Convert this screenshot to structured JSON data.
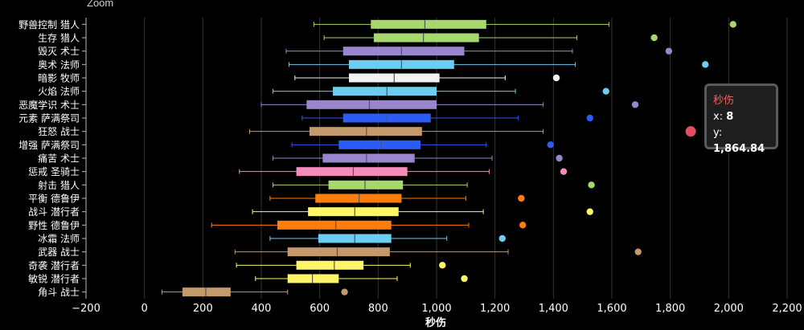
{
  "toolbar": {
    "zoom_label": "Zoom"
  },
  "colors": {
    "background": "#000000",
    "axis": "#bbbbbb",
    "grid": "#333333",
    "median": "#555555",
    "outlier_highlight": "#e05060"
  },
  "chart_data": {
    "type": "boxplot",
    "orientation": "horizontal",
    "xlabel": "秒伤",
    "xlim": [
      -200,
      2200
    ],
    "x_ticks": [
      -200,
      0,
      200,
      400,
      600,
      800,
      1000,
      1200,
      1400,
      1600,
      1800,
      2000,
      2200
    ],
    "x_tick_labels": [
      "−200",
      "0",
      "200",
      "400",
      "600",
      "800",
      "1,000",
      "1,200",
      "1,400",
      "1,600",
      "1,800",
      "2,000",
      "2,200"
    ],
    "grid": true,
    "categories": [
      "野兽控制 猎人",
      "生存 猎人",
      "毁灭 术士",
      "奥术 法师",
      "暗影 牧师",
      "火焰 法师",
      "恶魔学识 术士",
      "元素 萨满祭司",
      "狂怒 战士",
      "增强 萨满祭司",
      "痛苦 术士",
      "惩戒 圣骑士",
      "射击 猎人",
      "平衡 德鲁伊",
      "战斗 潜行者",
      "野性 德鲁伊",
      "冰霜 法师",
      "武器 战士",
      "奇袭 潜行者",
      "敏锐 潜行者",
      "角斗 战士"
    ],
    "colors": [
      "#a6d86e",
      "#a6d86e",
      "#9a86cc",
      "#6ccdf0",
      "#f2f2f2",
      "#6ccdf0",
      "#9a86cc",
      "#2b5cf5",
      "#c49a6c",
      "#2b5cf5",
      "#9a86cc",
      "#f48cba",
      "#a6d86e",
      "#ff7d0a",
      "#fff569",
      "#ff7d0a",
      "#6ccdf0",
      "#c49a6c",
      "#fff569",
      "#fff569",
      "#c49a6c"
    ],
    "boxes": [
      {
        "min": 580,
        "q1": 775,
        "median": 960,
        "q3": 1170,
        "max": 1590
      },
      {
        "min": 615,
        "q1": 785,
        "median": 955,
        "q3": 1145,
        "max": 1480
      },
      {
        "min": 485,
        "q1": 680,
        "median": 880,
        "q3": 1095,
        "max": 1465
      },
      {
        "min": 495,
        "q1": 700,
        "median": 880,
        "q3": 1060,
        "max": 1475
      },
      {
        "min": 515,
        "q1": 700,
        "median": 855,
        "q3": 1010,
        "max": 1235
      },
      {
        "min": 440,
        "q1": 645,
        "median": 830,
        "q3": 1000,
        "max": 1270
      },
      {
        "min": 400,
        "q1": 555,
        "median": 770,
        "q3": 1000,
        "max": 1365
      },
      {
        "min": 540,
        "q1": 680,
        "median": 830,
        "q3": 980,
        "max": 1280
      },
      {
        "min": 360,
        "q1": 565,
        "median": 760,
        "q3": 950,
        "max": 1365
      },
      {
        "min": 505,
        "q1": 665,
        "median": 810,
        "q3": 945,
        "max": 1170
      },
      {
        "min": 440,
        "q1": 610,
        "median": 760,
        "q3": 925,
        "max": 1190
      },
      {
        "min": 325,
        "q1": 520,
        "median": 715,
        "q3": 900,
        "max": 1180
      },
      {
        "min": 440,
        "q1": 630,
        "median": 755,
        "q3": 885,
        "max": 1105
      },
      {
        "min": 430,
        "q1": 585,
        "median": 735,
        "q3": 880,
        "max": 1100
      },
      {
        "min": 370,
        "q1": 560,
        "median": 720,
        "q3": 870,
        "max": 1160
      },
      {
        "min": 230,
        "q1": 455,
        "median": 655,
        "q3": 845,
        "max": 1110
      },
      {
        "min": 430,
        "q1": 595,
        "median": 720,
        "q3": 845,
        "max": 1035
      },
      {
        "min": 310,
        "q1": 490,
        "median": 660,
        "q3": 840,
        "max": 1245
      },
      {
        "min": 315,
        "q1": 520,
        "median": 650,
        "q3": 750,
        "max": 910
      },
      {
        "min": 380,
        "q1": 490,
        "median": 575,
        "q3": 665,
        "max": 865
      },
      {
        "min": 60,
        "q1": 130,
        "median": 210,
        "q3": 295,
        "max": 490
      }
    ],
    "outliers": [
      2015,
      1745,
      1795,
      1920,
      1410,
      1580,
      1680,
      1525,
      1870,
      1390,
      1420,
      1435,
      1530,
      1290,
      1525,
      1295,
      1225,
      1690,
      1020,
      1095,
      685
    ],
    "tooltip": {
      "title": "秒伤",
      "x_label": "x:",
      "x_value": "8",
      "y_label": "y:",
      "y_value": "1,864.84"
    }
  }
}
